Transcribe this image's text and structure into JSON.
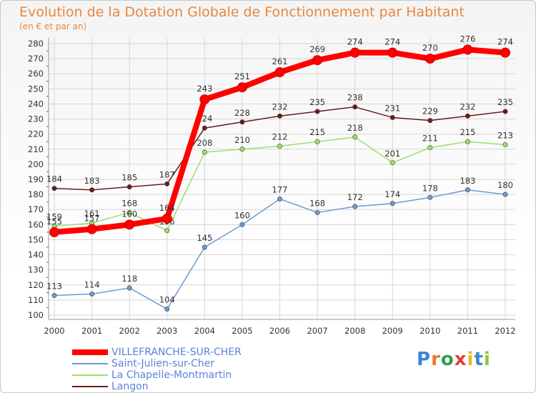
{
  "title": "Evolution de la Dotation Globale de Fonctionnement par Habitant",
  "subtitle": "(en € et par an)",
  "logo": {
    "text": "Proxiti",
    "letter_colors": [
      "#3a86d6",
      "#e8792c",
      "#2f9e4a",
      "#e03c3c",
      "#f1b51c",
      "#3a86d6",
      "#8cc63f"
    ]
  },
  "chart_data": {
    "type": "line",
    "title": "Evolution de la Dotation Globale de Fonctionnement par Habitant",
    "subtitle": "(en € et par an)",
    "xlabel": "",
    "ylabel": "",
    "categories": [
      "2000",
      "2001",
      "2002",
      "2003",
      "2004",
      "2005",
      "2006",
      "2007",
      "2008",
      "2009",
      "2010",
      "2011",
      "2012"
    ],
    "ylim": [
      100,
      280
    ],
    "yticks": [
      100,
      110,
      120,
      130,
      140,
      150,
      160,
      170,
      180,
      190,
      200,
      210,
      220,
      230,
      240,
      250,
      260,
      270,
      280
    ],
    "grid": true,
    "legend_position": "bottom-left",
    "series": [
      {
        "name": "Langon",
        "color": "#6b1a1a",
        "values": [
          184,
          183,
          185,
          187,
          224,
          228,
          232,
          235,
          238,
          231,
          229,
          232,
          235
        ]
      },
      {
        "name": "La Chapelle-Montmartin",
        "color": "#9ee06a",
        "values": [
          159,
          161,
          168,
          156,
          208,
          210,
          212,
          215,
          218,
          201,
          211,
          215,
          213
        ]
      },
      {
        "name": "Saint-Julien-sur-Cher",
        "color": "#6b9bd1",
        "values": [
          113,
          114,
          118,
          104,
          145,
          160,
          177,
          168,
          172,
          174,
          178,
          183,
          180
        ]
      },
      {
        "name": "VILLEFRANCHE-SUR-CHER",
        "color": "#ff0000",
        "values": [
          155,
          157,
          160,
          164,
          243,
          251,
          261,
          269,
          274,
          274,
          270,
          276,
          274
        ]
      }
    ],
    "legend_order": [
      "VILLEFRANCHE-SUR-CHER",
      "Saint-Julien-sur-Cher",
      "La Chapelle-Montmartin",
      "Langon"
    ]
  }
}
